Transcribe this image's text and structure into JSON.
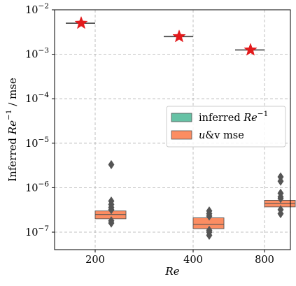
{
  "chart_data": {
    "type": "boxen",
    "title": "",
    "xlabel": "Re",
    "ylabel": "Inferred Re⁻¹ / mse",
    "ylabel_parts": {
      "prefix": "Inferred ",
      "base": "Re",
      "sup": "−1",
      "suffix": " / mse"
    },
    "yscale": "log",
    "ylim": [
      5e-08,
      0.01
    ],
    "grid": true,
    "categories": [
      "200",
      "400",
      "800"
    ],
    "y_ticks": [
      {
        "value": 1e-07,
        "base": "10",
        "exp": "−7"
      },
      {
        "value": 1e-06,
        "base": "10",
        "exp": "−6"
      },
      {
        "value": 1e-05,
        "base": "10",
        "exp": "−5"
      },
      {
        "value": 0.0001,
        "base": "10",
        "exp": "−4"
      },
      {
        "value": 0.001,
        "base": "10",
        "exp": "−3"
      },
      {
        "value": 0.01,
        "base": "10",
        "exp": "−2"
      }
    ],
    "legend": {
      "position": "center-right",
      "entries": [
        {
          "series": "inferred",
          "prefix": "inferred ",
          "italic": "Re",
          "sup": "−1",
          "suffix": ""
        },
        {
          "series": "mse",
          "prefix": "",
          "italic": "u",
          "sup": "",
          "suffix": "&v mse"
        }
      ]
    },
    "series": [
      {
        "name": "inferred Re⁻¹",
        "color": "#66c2a5",
        "values": [
          0.005,
          0.0025,
          0.00125
        ],
        "star_color": "#e31a1c"
      },
      {
        "name": "u&v mse",
        "color": "#fc8d62",
        "boxes": [
          {
            "category": "200",
            "low": 2e-07,
            "high": 3e-07,
            "median": 2.5e-07,
            "outliers": [
              3.3e-06,
              5e-07,
              4.2e-07,
              3.6e-07,
              3.2e-07,
              1.8e-07,
              1.6e-07
            ]
          },
          {
            "category": "400",
            "low": 1.2e-07,
            "high": 2.1e-07,
            "median": 1.5e-07,
            "outliers": [
              3e-07,
              2.6e-07,
              2.3e-07,
              1.1e-07,
              1e-07,
              8.5e-08
            ]
          },
          {
            "category": "800",
            "low": 3.7e-07,
            "high": 5.2e-07,
            "median": 4.4e-07,
            "outliers": [
              1.75e-06,
              1.4e-06,
              7.5e-07,
              6.2e-07,
              5.7e-07,
              3.2e-07,
              2.6e-07
            ]
          }
        ]
      }
    ]
  }
}
